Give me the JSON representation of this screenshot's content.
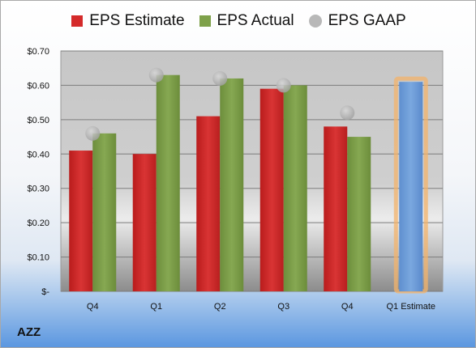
{
  "ticker": "AZZ",
  "colors": {
    "estimate": "#d42a2a",
    "actual": "#7ea14a",
    "gaap": "#b8b8b8",
    "forecast": "#6f9fd8",
    "forecast_glow": "#f3b36b"
  },
  "legend": [
    "EPS Estimate",
    "EPS Actual",
    "EPS GAAP"
  ],
  "chart_data": {
    "type": "bar",
    "categories": [
      "Q4",
      "Q1",
      "Q2",
      "Q3",
      "Q4",
      "Q1 Estimate"
    ],
    "series": [
      {
        "name": "EPS Estimate",
        "values": [
          0.41,
          0.4,
          0.51,
          0.59,
          0.48,
          null
        ]
      },
      {
        "name": "EPS Actual",
        "values": [
          0.46,
          0.63,
          0.62,
          0.6,
          0.45,
          0.61
        ]
      },
      {
        "name": "EPS GAAP",
        "values": [
          0.46,
          0.63,
          0.62,
          0.6,
          0.52,
          null
        ]
      }
    ],
    "ylim": [
      0,
      0.7
    ],
    "yticks": [
      0,
      0.1,
      0.2,
      0.3,
      0.4,
      0.5,
      0.6,
      0.7
    ],
    "ytick_labels": [
      "$-",
      "$0.10",
      "$0.20",
      "$0.30",
      "$0.40",
      "$0.50",
      "$0.60",
      "$0.70"
    ],
    "grid": true,
    "legend_position": "top"
  }
}
